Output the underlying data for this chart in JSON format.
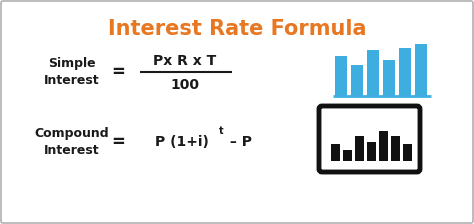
{
  "title": "Interest Rate Formula",
  "title_color": "#E87722",
  "title_fontsize": 15,
  "bg_color": "#ffffff",
  "border_color": "#b0b0b0",
  "text_color": "#1a1a1a",
  "simple_label": "Simple\nInterest",
  "simple_eq": "=",
  "simple_formula_num": "Px R x T",
  "simple_formula_den": "100",
  "compound_label": "Compound\nInterest",
  "compound_eq": "=",
  "compound_formula": "P (1+i)",
  "compound_super": "t",
  "compound_tail": " – P",
  "blue_color": "#3eaee0",
  "dark_color": "#111111",
  "label_fontsize": 9,
  "formula_fontsize": 10,
  "eq_fontsize": 12
}
